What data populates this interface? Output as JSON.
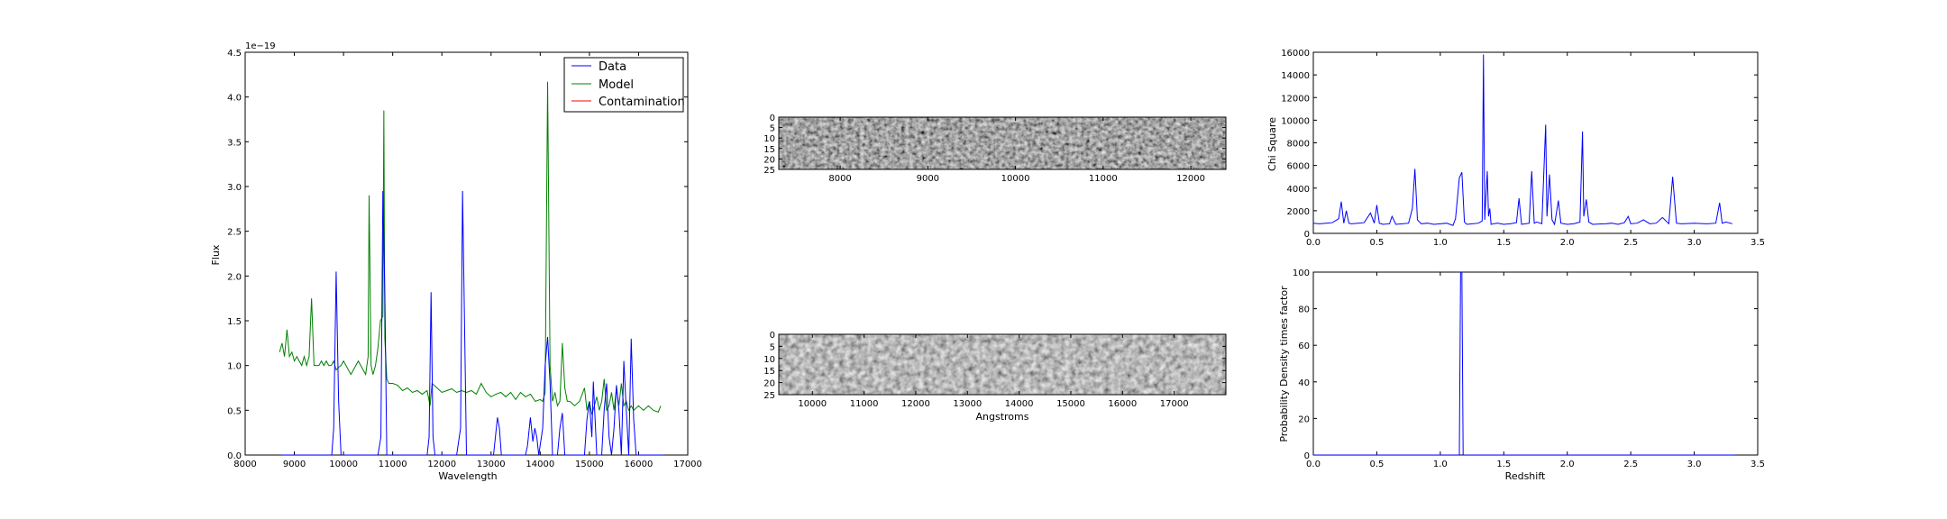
{
  "colors": {
    "data": "#0000ff",
    "model": "#008000",
    "contamination": "#ff0000",
    "frame": "#000000"
  },
  "chart_data": [
    {
      "id": "spectrum",
      "type": "line",
      "title": "",
      "xlabel": "Wavelength",
      "ylabel": "Flux",
      "offset_text": "1e−19",
      "xlim": [
        8000,
        17000
      ],
      "ylim": [
        0,
        4.5
      ],
      "xticks": [
        "8000",
        "9000",
        "10000",
        "11000",
        "12000",
        "13000",
        "14000",
        "15000",
        "16000",
        "17000"
      ],
      "yticks": [
        "0.0",
        "0.5",
        "1.0",
        "1.5",
        "2.0",
        "2.5",
        "3.0",
        "3.5",
        "4.0",
        "4.5"
      ],
      "legend": {
        "placement": "top-right",
        "entries": [
          "Data",
          "Model",
          "Contamination"
        ]
      },
      "series": [
        {
          "name": "Data",
          "color": "#0000ff",
          "x": [
            8750,
            9600,
            9700,
            9760,
            9800,
            9850,
            9900,
            9950,
            10000,
            10600,
            10700,
            10760,
            10800,
            10840,
            10880,
            10950,
            11000,
            11700,
            11740,
            11780,
            11820,
            11860,
            11900,
            12300,
            12380,
            12420,
            12460,
            12500,
            12540,
            12600,
            12800,
            13050,
            13130,
            13170,
            13210,
            13250,
            13600,
            13700,
            13740,
            13800,
            13850,
            13890,
            13930,
            13970,
            14050,
            14100,
            14150,
            14200,
            14250,
            14300,
            14350,
            14400,
            14450,
            14500,
            14600,
            14700,
            14800,
            14900,
            14950,
            15000,
            15050,
            15080,
            15150,
            15250,
            15300,
            15350,
            15400,
            15450,
            15500,
            15550,
            15600,
            15650,
            15700,
            15750,
            15800,
            15850,
            15900,
            15950,
            16000,
            16100,
            16300,
            16500
          ],
          "y": [
            0,
            0,
            0,
            0,
            0.3,
            2.05,
            0.6,
            0,
            0,
            0,
            0,
            0.2,
            2.95,
            1.8,
            0,
            0,
            0,
            0,
            0.2,
            1.82,
            0.2,
            0,
            0,
            0,
            0.3,
            2.95,
            1.5,
            0,
            0,
            0,
            0,
            0,
            0.42,
            0.3,
            0,
            0,
            0,
            0,
            0.1,
            0.42,
            0.15,
            0.3,
            0.2,
            0,
            0.3,
            1.0,
            1.32,
            0.8,
            0,
            0,
            0,
            0.3,
            0.47,
            0,
            0,
            0,
            0,
            0,
            0.4,
            0.6,
            0.2,
            0.82,
            0,
            0,
            0.5,
            0.8,
            0.2,
            0,
            0.3,
            0.78,
            0.5,
            0,
            1.05,
            0.5,
            0,
            1.3,
            0.4,
            0,
            0,
            0,
            0,
            0
          ]
        },
        {
          "name": "Model",
          "color": "#008000",
          "x": [
            8700,
            8750,
            8800,
            8850,
            8900,
            8950,
            9000,
            9050,
            9100,
            9150,
            9200,
            9250,
            9300,
            9350,
            9400,
            9450,
            9500,
            9550,
            9600,
            9650,
            9700,
            9750,
            9800,
            9850,
            9900,
            9950,
            10000,
            10050,
            10100,
            10150,
            10200,
            10250,
            10300,
            10350,
            10400,
            10450,
            10500,
            10520,
            10560,
            10600,
            10650,
            10700,
            10750,
            10800,
            10820,
            10840,
            10880,
            10920,
            11000,
            11100,
            11200,
            11300,
            11400,
            11500,
            11600,
            11700,
            11760,
            11800,
            11900,
            12000,
            12100,
            12200,
            12300,
            12400,
            12500,
            12600,
            12700,
            12800,
            12900,
            13000,
            13100,
            13200,
            13300,
            13400,
            13500,
            13600,
            13700,
            13800,
            13900,
            14000,
            14050,
            14100,
            14150,
            14200,
            14250,
            14300,
            14350,
            14400,
            14450,
            14500,
            14550,
            14600,
            14700,
            14800,
            14900,
            14950,
            15000,
            15050,
            15100,
            15150,
            15200,
            15250,
            15300,
            15350,
            15400,
            15450,
            15500,
            15550,
            15600,
            15650,
            15700,
            15750,
            15800,
            15850,
            15900,
            16000,
            16100,
            16200,
            16300,
            16400,
            16450
          ],
          "y": [
            1.15,
            1.25,
            1.1,
            1.4,
            1.1,
            1.15,
            1.05,
            1.1,
            1.05,
            1.0,
            1.1,
            1.0,
            1.1,
            1.75,
            1.0,
            1.0,
            1.0,
            1.05,
            1.0,
            1.05,
            1.0,
            1.0,
            1.05,
            0.95,
            0.98,
            1.0,
            1.05,
            1.0,
            0.95,
            0.9,
            0.95,
            1.0,
            1.05,
            1.0,
            0.95,
            0.9,
            1.1,
            2.9,
            1.0,
            0.9,
            1.0,
            1.2,
            1.5,
            1.55,
            3.85,
            1.3,
            0.85,
            0.8,
            0.8,
            0.78,
            0.72,
            0.75,
            0.7,
            0.72,
            0.68,
            0.72,
            0.55,
            0.8,
            0.75,
            0.7,
            0.72,
            0.74,
            0.7,
            0.72,
            0.7,
            0.72,
            0.68,
            0.8,
            0.7,
            0.65,
            0.68,
            0.7,
            0.65,
            0.7,
            0.62,
            0.7,
            0.65,
            0.68,
            0.6,
            0.62,
            0.6,
            0.7,
            4.17,
            1.0,
            0.6,
            0.7,
            0.55,
            0.6,
            1.25,
            0.75,
            0.6,
            0.6,
            0.55,
            0.6,
            0.75,
            0.5,
            0.6,
            0.45,
            0.55,
            0.65,
            0.5,
            0.6,
            0.85,
            0.5,
            0.55,
            0.7,
            0.5,
            0.75,
            0.55,
            0.8,
            0.55,
            0.6,
            0.5,
            0.55,
            0.5,
            0.55,
            0.5,
            0.55,
            0.5,
            0.48,
            0.55
          ]
        },
        {
          "name": "Contamination",
          "color": "#ff0000",
          "x": [],
          "y": []
        }
      ]
    },
    {
      "id": "image-top",
      "type": "heatmap",
      "xlim": [
        7300,
        12400
      ],
      "ylim": [
        25,
        0
      ],
      "xticks": [
        "8000",
        "9000",
        "10000",
        "11000",
        "12000"
      ],
      "yticks": [
        "0",
        "5",
        "10",
        "15",
        "20",
        "25"
      ],
      "xlabel": ""
    },
    {
      "id": "image-bottom",
      "type": "heatmap",
      "xlim": [
        9350,
        18000
      ],
      "ylim": [
        25,
        0
      ],
      "xticks": [
        "10000",
        "11000",
        "12000",
        "13000",
        "14000",
        "15000",
        "16000",
        "17000"
      ],
      "yticks": [
        "0",
        "5",
        "10",
        "15",
        "20",
        "25"
      ],
      "xlabel": "Angstroms"
    },
    {
      "id": "chisq",
      "type": "line",
      "xlabel": "",
      "ylabel": "Chi Square",
      "xlim": [
        0,
        3.5
      ],
      "ylim": [
        0,
        16000
      ],
      "xticks": [
        "0.0",
        "0.5",
        "1.0",
        "1.5",
        "2.0",
        "2.5",
        "3.0",
        "3.5"
      ],
      "yticks": [
        "0",
        "2000",
        "4000",
        "6000",
        "8000",
        "10000",
        "12000",
        "14000",
        "16000"
      ],
      "series": [
        {
          "name": "",
          "color": "#0000ff",
          "x": [
            0,
            0.05,
            0.1,
            0.15,
            0.2,
            0.22,
            0.24,
            0.26,
            0.28,
            0.3,
            0.35,
            0.4,
            0.45,
            0.48,
            0.5,
            0.52,
            0.55,
            0.6,
            0.62,
            0.65,
            0.7,
            0.75,
            0.78,
            0.8,
            0.82,
            0.85,
            0.9,
            0.95,
            1.0,
            1.05,
            1.1,
            1.12,
            1.15,
            1.17,
            1.19,
            1.21,
            1.25,
            1.3,
            1.33,
            1.34,
            1.35,
            1.37,
            1.38,
            1.39,
            1.4,
            1.42,
            1.45,
            1.5,
            1.55,
            1.6,
            1.62,
            1.64,
            1.67,
            1.7,
            1.72,
            1.74,
            1.76,
            1.8,
            1.83,
            1.84,
            1.86,
            1.88,
            1.9,
            1.93,
            1.95,
            2.0,
            2.05,
            2.1,
            2.12,
            2.13,
            2.15,
            2.17,
            2.2,
            2.3,
            2.35,
            2.4,
            2.45,
            2.48,
            2.5,
            2.55,
            2.6,
            2.65,
            2.7,
            2.75,
            2.8,
            2.83,
            2.86,
            2.9,
            3.0,
            3.1,
            3.17,
            3.2,
            3.22,
            3.25,
            3.3
          ],
          "y": [
            900,
            850,
            900,
            950,
            1300,
            2800,
            900,
            2000,
            900,
            850,
            900,
            950,
            1800,
            900,
            2500,
            900,
            800,
            850,
            1500,
            800,
            850,
            900,
            2200,
            5700,
            1200,
            850,
            900,
            800,
            850,
            900,
            700,
            1300,
            4900,
            5400,
            1000,
            800,
            850,
            900,
            1100,
            15800,
            1200,
            5500,
            1500,
            2200,
            800,
            850,
            900,
            800,
            850,
            950,
            3100,
            800,
            850,
            900,
            5500,
            900,
            1000,
            850,
            9600,
            1500,
            5200,
            1200,
            800,
            2900,
            900,
            800,
            850,
            1000,
            9000,
            1500,
            3000,
            1000,
            800,
            850,
            900,
            800,
            950,
            1500,
            850,
            900,
            1200,
            850,
            900,
            1400,
            850,
            5000,
            900,
            850,
            900,
            850,
            900,
            2700,
            900,
            1000,
            850
          ]
        }
      ]
    },
    {
      "id": "pdf",
      "type": "line",
      "xlabel": "Redshift",
      "ylabel": "Probability Density times factor",
      "xlim": [
        0,
        3.5
      ],
      "ylim": [
        0,
        100
      ],
      "xticks": [
        "0.0",
        "0.5",
        "1.0",
        "1.5",
        "2.0",
        "2.5",
        "3.0",
        "3.5"
      ],
      "yticks": [
        "0",
        "20",
        "40",
        "60",
        "80",
        "100"
      ],
      "series": [
        {
          "name": "",
          "color": "#0000ff",
          "x": [
            0,
            1.14,
            1.15,
            1.16,
            1.17,
            1.18,
            3.32
          ],
          "y": [
            0,
            0,
            0,
            100,
            100,
            0,
            0
          ]
        }
      ]
    }
  ]
}
